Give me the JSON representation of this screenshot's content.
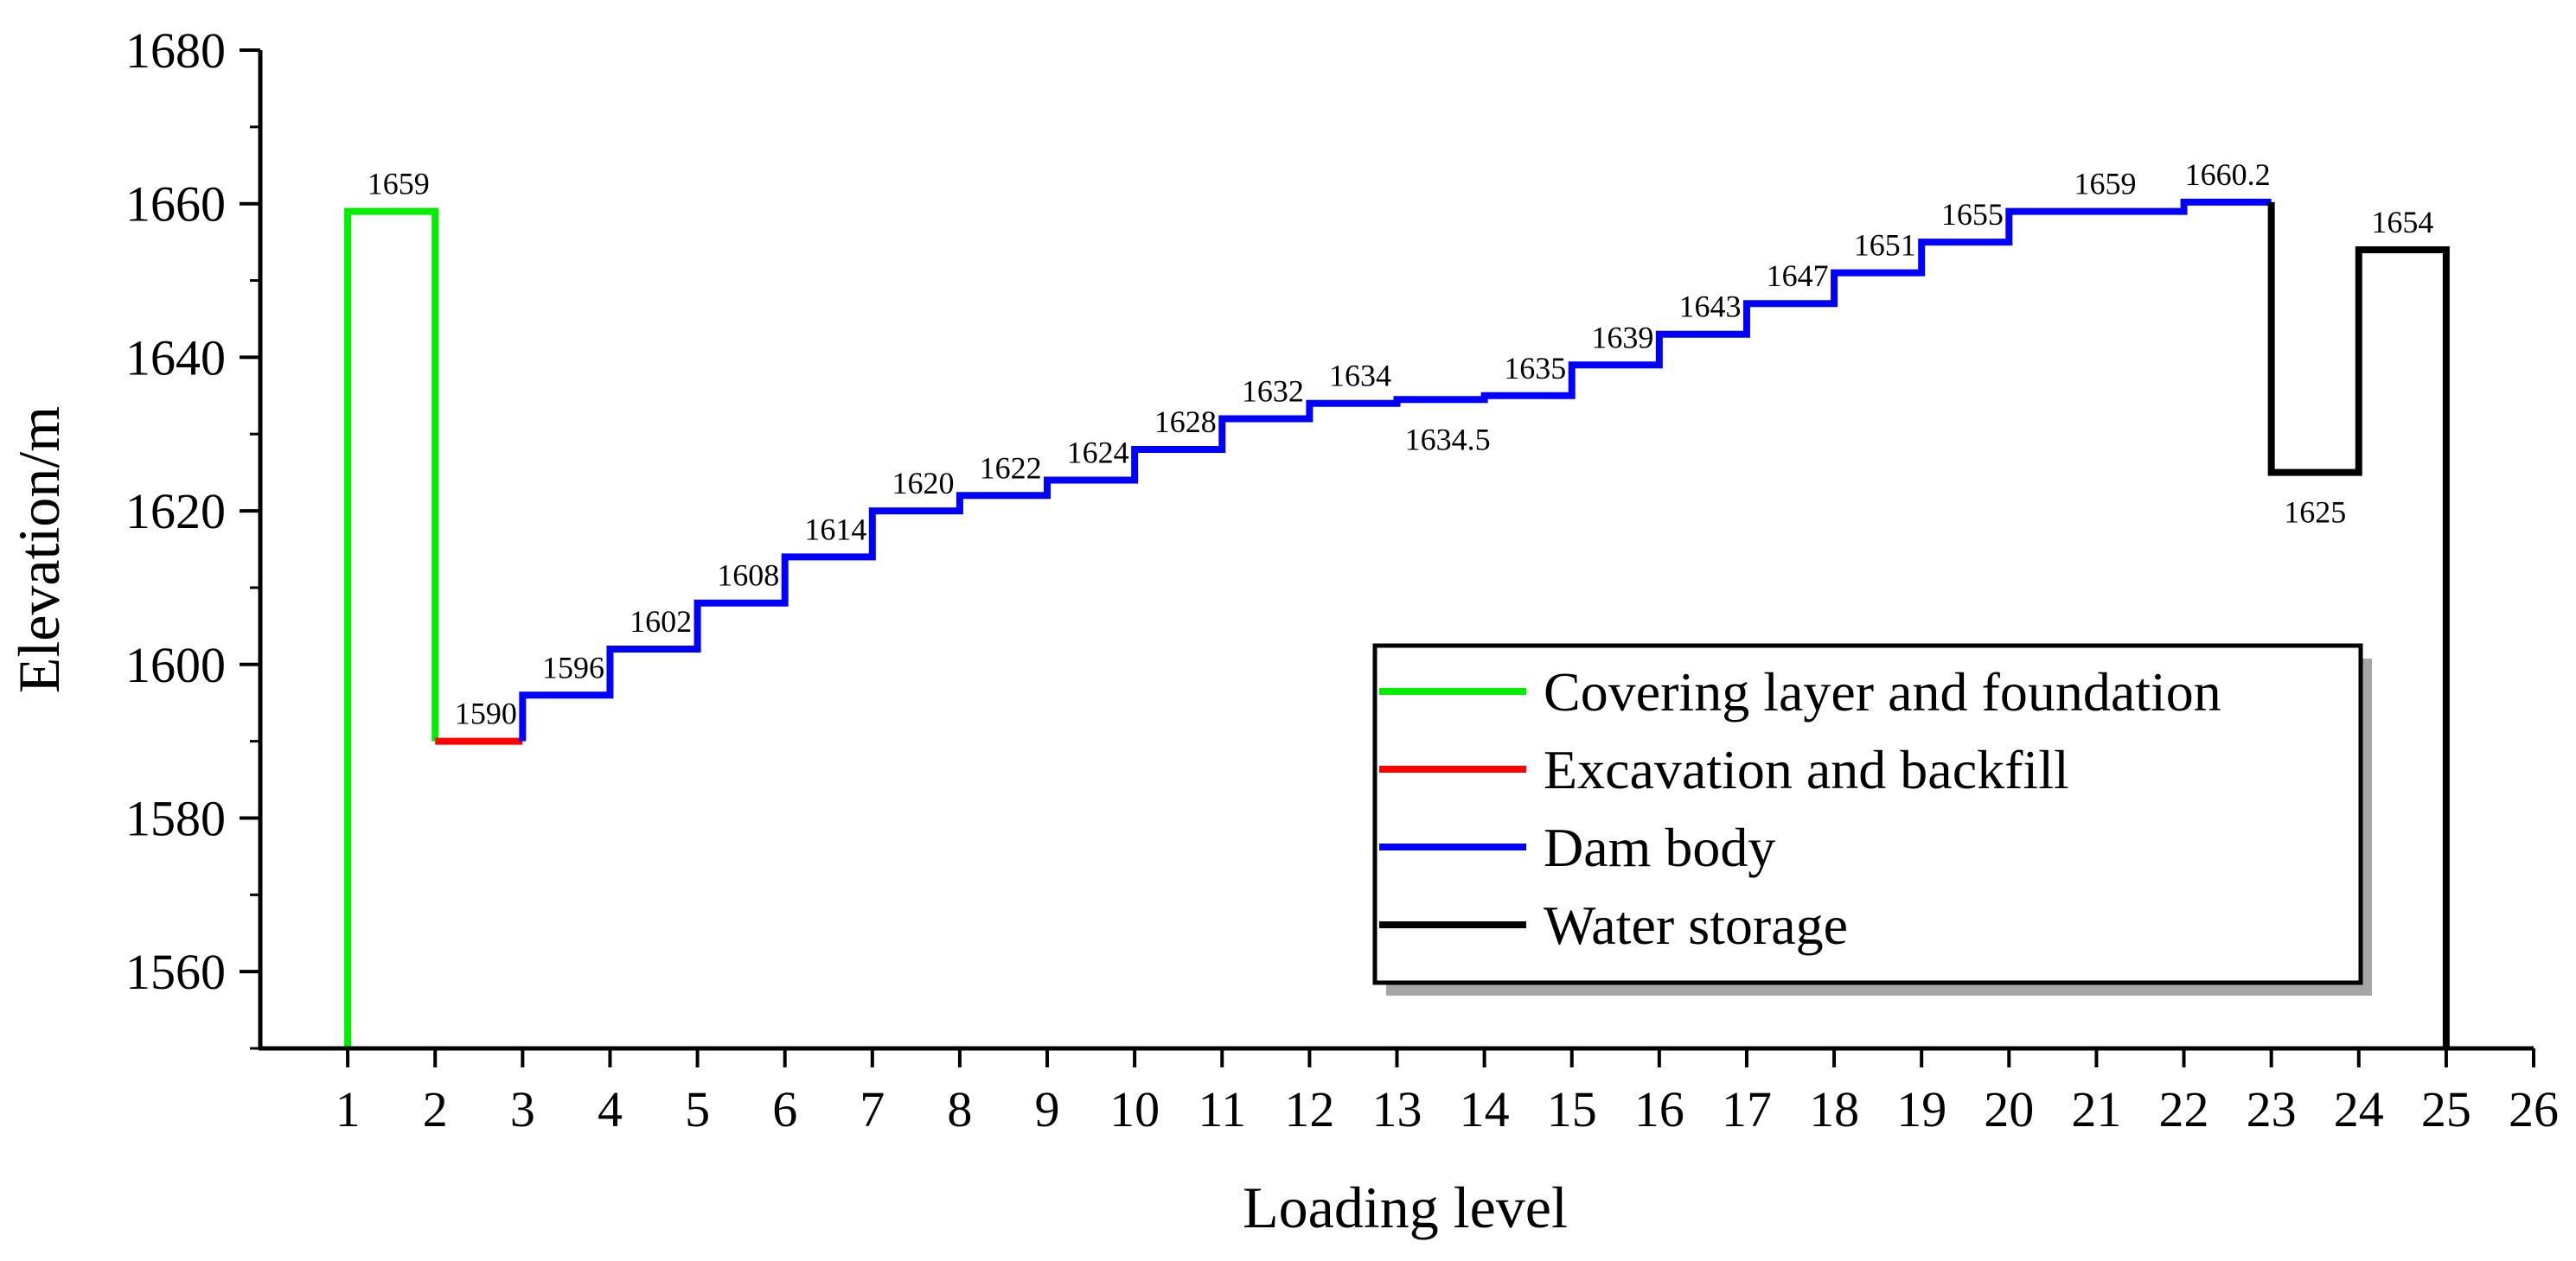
{
  "chart_data": {
    "type": "line",
    "xlabel": "Loading level",
    "ylabel": "Elevation/m",
    "xlim": [
      0,
      26
    ],
    "ylim": [
      1550,
      1680
    ],
    "xticks": [
      "1",
      "2",
      "3",
      "4",
      "5",
      "6",
      "7",
      "8",
      "9",
      "10",
      "11",
      "12",
      "13",
      "14",
      "15",
      "16",
      "17",
      "18",
      "19",
      "20",
      "21",
      "22",
      "23",
      "24",
      "25",
      "26"
    ],
    "yticks": [
      "1560",
      "1580",
      "1600",
      "1620",
      "1640",
      "1660",
      "1680"
    ],
    "series": [
      {
        "name": "Covering layer and foundation",
        "color": "#00ee00",
        "points": [
          [
            1,
            1550
          ],
          [
            1,
            1659
          ],
          [
            2,
            1659
          ],
          [
            2,
            1590
          ]
        ]
      },
      {
        "name": "Excavation and backfill",
        "color": "#ff0000",
        "points": [
          [
            2,
            1590
          ],
          [
            3,
            1590
          ]
        ]
      },
      {
        "name": "Dam body",
        "color": "#0000ff",
        "points": [
          [
            3,
            1590
          ],
          [
            3,
            1596
          ],
          [
            4,
            1596
          ],
          [
            4,
            1602
          ],
          [
            5,
            1602
          ],
          [
            5,
            1608
          ],
          [
            6,
            1608
          ],
          [
            6,
            1614
          ],
          [
            7,
            1614
          ],
          [
            7,
            1620
          ],
          [
            8,
            1620
          ],
          [
            8,
            1622
          ],
          [
            9,
            1622
          ],
          [
            9,
            1624
          ],
          [
            10,
            1624
          ],
          [
            10,
            1628
          ],
          [
            11,
            1628
          ],
          [
            11,
            1632
          ],
          [
            12,
            1632
          ],
          [
            12,
            1634
          ],
          [
            13,
            1634
          ],
          [
            13,
            1634.5
          ],
          [
            14,
            1634.5
          ],
          [
            14,
            1635
          ],
          [
            15,
            1635
          ],
          [
            15,
            1639
          ],
          [
            16,
            1639
          ],
          [
            16,
            1643
          ],
          [
            17,
            1643
          ],
          [
            17,
            1647
          ],
          [
            18,
            1647
          ],
          [
            18,
            1651
          ],
          [
            19,
            1651
          ],
          [
            19,
            1655
          ],
          [
            20,
            1655
          ],
          [
            20,
            1659
          ],
          [
            22,
            1659
          ],
          [
            22,
            1660.2
          ],
          [
            23,
            1660.2
          ]
        ]
      },
      {
        "name": "Water storage",
        "color": "#000000",
        "points": [
          [
            23,
            1660.2
          ],
          [
            23,
            1625
          ],
          [
            24,
            1625
          ],
          [
            24,
            1654
          ],
          [
            25,
            1654
          ],
          [
            25,
            1550
          ]
        ]
      }
    ],
    "annotations": [
      {
        "text": "1659",
        "x": 1.58,
        "y": 1659,
        "pos": "above"
      },
      {
        "text": "1590",
        "x": 2.58,
        "y": 1590,
        "pos": "above"
      },
      {
        "text": "1596",
        "x": 3.58,
        "y": 1596,
        "pos": "above"
      },
      {
        "text": "1602",
        "x": 4.58,
        "y": 1602,
        "pos": "above"
      },
      {
        "text": "1608",
        "x": 5.58,
        "y": 1608,
        "pos": "above"
      },
      {
        "text": "1614",
        "x": 6.58,
        "y": 1614,
        "pos": "above"
      },
      {
        "text": "1620",
        "x": 7.58,
        "y": 1620,
        "pos": "above"
      },
      {
        "text": "1622",
        "x": 8.58,
        "y": 1622,
        "pos": "above"
      },
      {
        "text": "1624",
        "x": 9.58,
        "y": 1624,
        "pos": "above"
      },
      {
        "text": "1628",
        "x": 10.58,
        "y": 1628,
        "pos": "above"
      },
      {
        "text": "1632",
        "x": 11.58,
        "y": 1632,
        "pos": "above"
      },
      {
        "text": "1634",
        "x": 12.58,
        "y": 1634,
        "pos": "above"
      },
      {
        "text": "1634.5",
        "x": 13.58,
        "y": 1634.5,
        "pos": "below"
      },
      {
        "text": "1635",
        "x": 14.58,
        "y": 1635,
        "pos": "above"
      },
      {
        "text": "1639",
        "x": 15.58,
        "y": 1639,
        "pos": "above"
      },
      {
        "text": "1643",
        "x": 16.58,
        "y": 1643,
        "pos": "above"
      },
      {
        "text": "1647",
        "x": 17.58,
        "y": 1647,
        "pos": "above"
      },
      {
        "text": "1651",
        "x": 18.58,
        "y": 1651,
        "pos": "above"
      },
      {
        "text": "1655",
        "x": 19.58,
        "y": 1655,
        "pos": "above"
      },
      {
        "text": "1659",
        "x": 21.1,
        "y": 1659,
        "pos": "above"
      },
      {
        "text": "1660.2",
        "x": 22.5,
        "y": 1660.2,
        "pos": "above"
      },
      {
        "text": "1625",
        "x": 23.5,
        "y": 1625,
        "pos": "below"
      },
      {
        "text": "1654",
        "x": 24.5,
        "y": 1654,
        "pos": "above"
      }
    ],
    "legend": {
      "placement": "bottom-right",
      "entries": [
        "Covering layer and foundation",
        "Excavation and backfill",
        "Dam body",
        "Water storage"
      ]
    }
  }
}
